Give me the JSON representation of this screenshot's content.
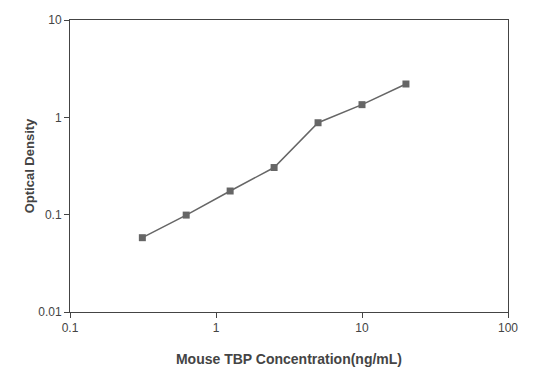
{
  "chart_data": {
    "type": "line",
    "xlabel": "Mouse TBP Concentration(ng/mL)",
    "ylabel": "Optical Density",
    "x": [
      0.313,
      0.625,
      1.25,
      2.5,
      5.0,
      10.0,
      20.0
    ],
    "values": [
      0.058,
      0.099,
      0.175,
      0.305,
      0.88,
      1.35,
      2.2
    ],
    "color": "#666666",
    "marker": "square",
    "line_style": "solid",
    "log": true,
    "xlim": [
      0.1,
      100
    ],
    "ylim": [
      0.01,
      10
    ],
    "xticks": [
      0.1,
      1,
      10,
      100
    ],
    "yticks": [
      0.01,
      0.1,
      1,
      10
    ],
    "grid": false
  }
}
